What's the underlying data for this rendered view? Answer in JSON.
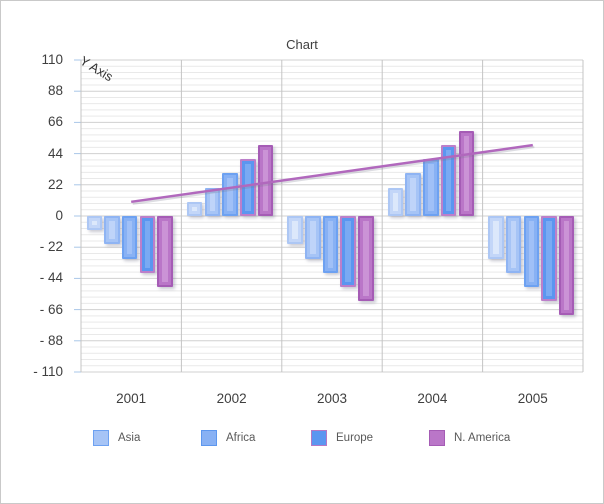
{
  "window": {
    "background": "#ffffff",
    "border_color": "#c9c9c9"
  },
  "chart_data": {
    "type": "bar",
    "title": "Chart",
    "y_axis_label": "Y Axis",
    "categories": [
      "2001",
      "2002",
      "2003",
      "2004",
      "2005"
    ],
    "series": [
      {
        "name": "",
        "values": [
          -10,
          10,
          -20,
          20,
          -30
        ],
        "edge": "#adc7f4",
        "fill": "#c3d6f8",
        "center": "#dce8fb"
      },
      {
        "name": "Asia",
        "values": [
          -20,
          20,
          -30,
          30,
          -40
        ],
        "edge": "#8fb4f3",
        "fill": "#a6c4f6",
        "center": "#bfd4f9"
      },
      {
        "name": "Africa",
        "values": [
          -30,
          30,
          -40,
          40,
          -50
        ],
        "edge": "#6da1f1",
        "fill": "#88b1f4",
        "center": "#a0c0f7"
      },
      {
        "name": "Europe",
        "values": [
          -40,
          40,
          -50,
          50,
          -60
        ],
        "edge": "#bc7fca",
        "fill": "#5b96f0",
        "center": "#7aaaf3"
      },
      {
        "name": "N. America",
        "values": [
          -50,
          50,
          -60,
          60,
          -70
        ],
        "edge": "#a55cb5",
        "fill": "#ba76c8",
        "center": "#cb93d6"
      }
    ],
    "legend": [
      {
        "label": "Asia",
        "fill": "#a6c4f6",
        "edge": "#6da1f1"
      },
      {
        "label": "Africa",
        "fill": "#88b1f4",
        "edge": "#5d97ee"
      },
      {
        "label": "Europe",
        "fill": "#5b96f0",
        "edge": "#b678c4"
      },
      {
        "label": "N. America",
        "fill": "#ba76c8",
        "edge": "#a55cb5"
      }
    ],
    "legend_position": "bottom",
    "y_ticks": [
      110,
      88,
      66,
      44,
      22,
      0,
      -22,
      -44,
      -66,
      -88,
      -110
    ],
    "y_tick_labels": [
      "110",
      "88",
      "66",
      "44",
      "22",
      "0",
      "- 22",
      "- 44",
      "- 66",
      "- 88",
      "- 110"
    ],
    "ylim": [
      -110,
      110
    ],
    "major_unit": 22,
    "minor_unit": 4.4,
    "grid": "on",
    "trendline": {
      "color": "#b168bd",
      "from": {
        "category": "2001",
        "value": 10
      },
      "to": {
        "category": "2005",
        "value": 50
      }
    },
    "colors": {
      "major_gridline": "#d0d0d0",
      "minor_gridline": "#e9e9e9",
      "vertical_gridline": "#c4c4c4",
      "tick_mark": "#a9c7e8",
      "axis_text": "#3f3f3f",
      "legend_text": "#595959"
    }
  }
}
